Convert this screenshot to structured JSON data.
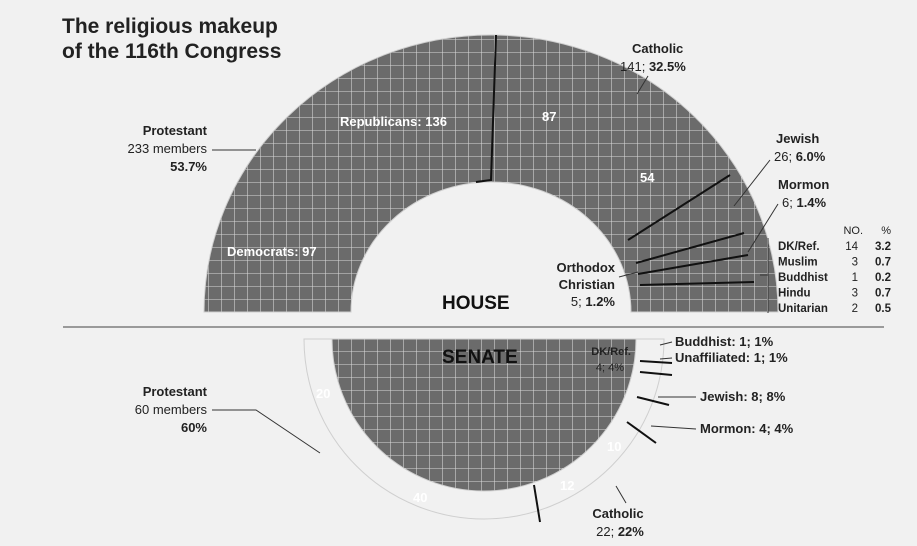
{
  "title_line1": "The religious makeup",
  "title_line2": "of the 116th Congress",
  "chart_data": [
    {
      "type": "pie",
      "chamber": "HOUSE",
      "slices": [
        {
          "label": "Protestant",
          "value": 233,
          "count_text": "233 members",
          "pct_text": "53.7%"
        },
        {
          "label": "Catholic",
          "value": 141,
          "count_text": "141;",
          "pct_text": "32.5%"
        },
        {
          "label": "Jewish",
          "value": 26,
          "count_text": "26;",
          "pct_text": "6.0%"
        },
        {
          "label": "Mormon",
          "value": 6,
          "count_text": "6;",
          "pct_text": "1.4%"
        },
        {
          "label": "Orthodox Christian",
          "label_line1": "Orthodox",
          "label_line2": "Christian",
          "value": 5,
          "count_text": "5;",
          "pct_text": "1.2%"
        },
        {
          "label": "DK/Ref.",
          "value": 14,
          "pct": 3.2
        },
        {
          "label": "Muslim",
          "value": 3,
          "pct": 0.7
        },
        {
          "label": "Buddhist",
          "value": 1,
          "pct": 0.2
        },
        {
          "label": "Hindu",
          "value": 3,
          "pct": 0.7
        },
        {
          "label": "Unitarian",
          "value": 2,
          "pct": 0.5
        }
      ],
      "party_split": {
        "protestant": [
          {
            "label": "Republicans:",
            "value": 136
          },
          {
            "label": "Democrats:",
            "value": 97
          }
        ],
        "catholic": [
          {
            "value": 87
          },
          {
            "value": 54
          }
        ]
      },
      "small_table": {
        "col_no": "NO.",
        "col_pct": "%"
      }
    },
    {
      "type": "pie",
      "chamber": "SENATE",
      "slices": [
        {
          "label": "Protestant",
          "value": 60,
          "count_text": "60 members",
          "pct_text": "60%"
        },
        {
          "label": "Catholic",
          "value": 22,
          "count_text": "22;",
          "pct_text": "22%"
        },
        {
          "label": "Mormon",
          "value": 4,
          "text": "Mormon: 4; 4%"
        },
        {
          "label": "Jewish",
          "value": 8,
          "text": "Jewish: 8; 8%"
        },
        {
          "label": "DK/Ref.",
          "value": 4,
          "text_line1": "DK/Ref.",
          "text_line2": "4; 4%"
        },
        {
          "label": "Unaffiliated",
          "value": 1,
          "text": "Unaffiliated: 1; 1%"
        },
        {
          "label": "Buddhist",
          "value": 1,
          "text": "Buddhist: 1; 1%"
        }
      ],
      "party_split": {
        "protestant": [
          {
            "value": 20
          },
          {
            "value": 40
          }
        ],
        "catholic": [
          {
            "value": 12
          },
          {
            "value": 10
          }
        ]
      }
    }
  ]
}
